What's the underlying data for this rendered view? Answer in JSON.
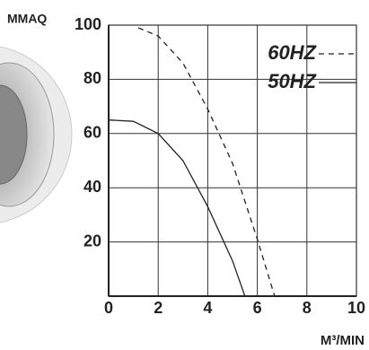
{
  "chart_data": {
    "type": "line",
    "y_label": "MMAQ",
    "x_label": "M³/MIN",
    "xlim": [
      0,
      10
    ],
    "xticks": [
      0,
      2,
      4,
      6,
      8,
      10
    ],
    "ylim": [
      0,
      100
    ],
    "yticks": [
      20,
      40,
      60,
      80,
      100
    ],
    "grid": true,
    "legend": "upper right",
    "series": [
      {
        "name": "60HZ",
        "color": "#222222",
        "line_style": "dashed",
        "x": [
          1.2,
          2,
          3,
          4,
          5,
          6,
          6.7
        ],
        "values": [
          99,
          96,
          86,
          69,
          49,
          21,
          0
        ]
      },
      {
        "name": "50HZ",
        "color": "#222222",
        "line_style": "solid",
        "x": [
          0,
          1,
          2,
          3,
          4,
          5,
          5.5
        ],
        "values": [
          65,
          64.5,
          60,
          50,
          33,
          13,
          0
        ]
      }
    ]
  }
}
